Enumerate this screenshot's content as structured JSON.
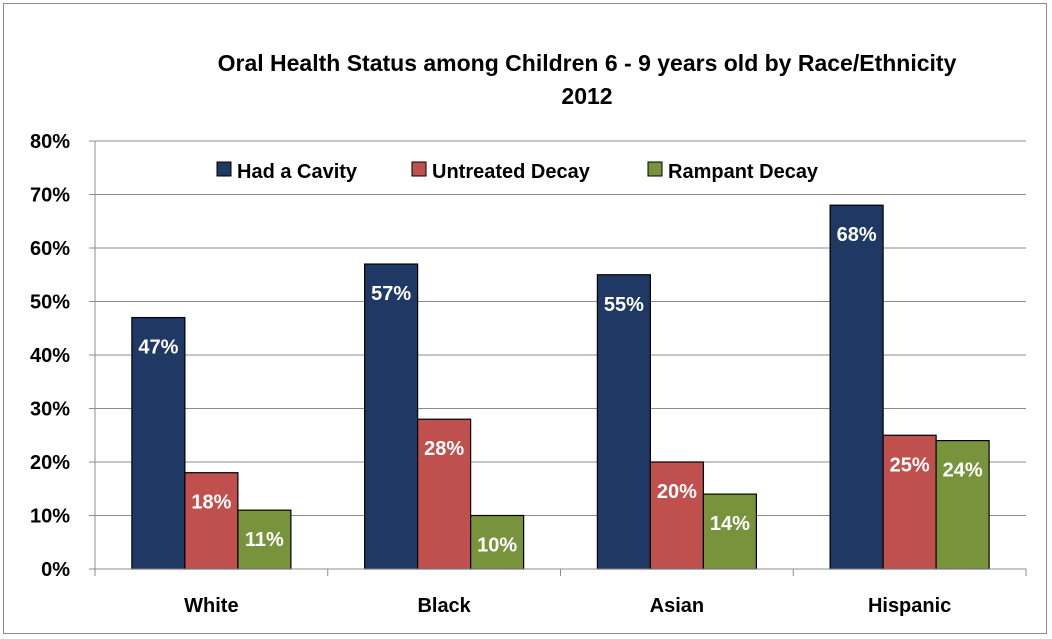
{
  "chart_data": {
    "type": "bar",
    "title": "Oral Health Status among Children 6 - 9 years old by Race/Ethnicity",
    "subtitle": "2012",
    "categories": [
      "White",
      "Black",
      "Asian",
      "Hispanic"
    ],
    "series": [
      {
        "name": "Had a Cavity",
        "color": "#1F3864",
        "values": [
          47,
          57,
          55,
          68
        ],
        "labels": [
          "47%",
          "57%",
          "55%",
          "68%"
        ]
      },
      {
        "name": "Untreated Decay",
        "color": "#C0504D",
        "values": [
          18,
          28,
          20,
          25
        ],
        "labels": [
          "18%",
          "28%",
          "20%",
          "25%"
        ]
      },
      {
        "name": "Rampant Decay",
        "color": "#77933C",
        "values": [
          11,
          10,
          14,
          24
        ],
        "labels": [
          "11%",
          "10%",
          "14%",
          "24%"
        ]
      }
    ],
    "ylim": [
      0,
      80
    ],
    "yticks": [
      "0%",
      "10%",
      "20%",
      "30%",
      "40%",
      "50%",
      "60%",
      "70%",
      "80%"
    ],
    "legend_position": "top-center",
    "grid": true
  }
}
